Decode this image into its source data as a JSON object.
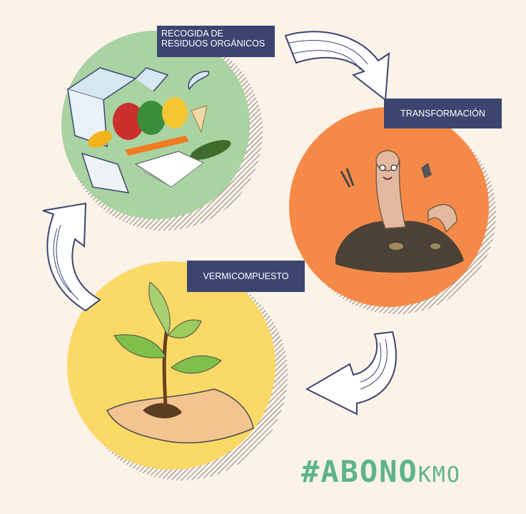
{
  "steps": {
    "collect": "RECOGIDA DE RESIDUOS ORGÁNICOS",
    "transform": "TRANSFORMACIÓN",
    "vermi": "VERMICOMPUESTO"
  },
  "hashtag": {
    "main": "#ABONO",
    "suffix": "KMO"
  },
  "colors": {
    "background": "#fbf2e8",
    "label_bg": "#3b4570",
    "circle_collect": "#a9d3a2",
    "circle_transform": "#f58a48",
    "circle_vermi": "#fbd967",
    "hashtag": "#5db586"
  }
}
